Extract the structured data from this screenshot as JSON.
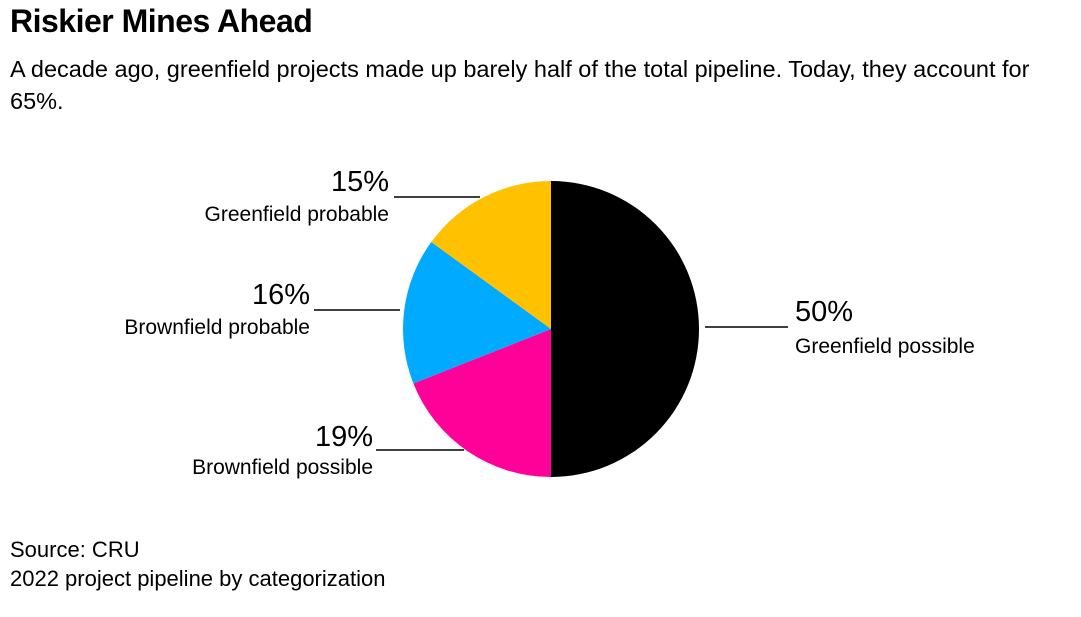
{
  "title": "Riskier Mines Ahead",
  "subtitle": "A decade ago, greenfield projects made up barely half of the total pipeline. Today, they account for 65%.",
  "chart_data": {
    "type": "pie",
    "title": "",
    "slices": [
      {
        "label": "Greenfield possible",
        "value": 50,
        "value_label": "50%",
        "color": "#000000"
      },
      {
        "label": "Brownfield possible",
        "value": 19,
        "value_label": "19%",
        "color": "#ff0099"
      },
      {
        "label": "Brownfield probable",
        "value": 16,
        "value_label": "16%",
        "color": "#00aaff"
      },
      {
        "label": "Greenfield probable",
        "value": 15,
        "value_label": "15%",
        "color": "#ffc100"
      }
    ]
  },
  "footer": {
    "source": "Source: CRU",
    "note": "2022 project pipeline by categorization"
  }
}
